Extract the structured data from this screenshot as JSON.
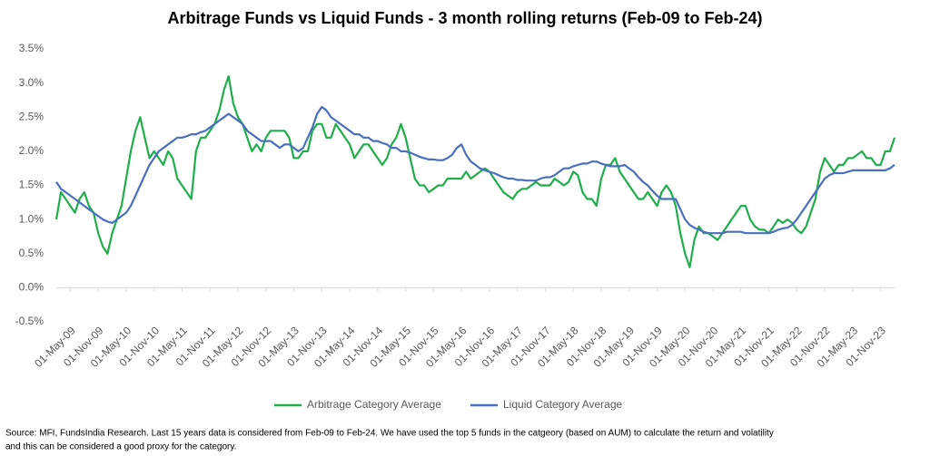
{
  "chart_data": {
    "type": "line",
    "title": "Arbitrage Funds vs Liquid Funds - 3 month rolling returns (Feb-09 to Feb-24)",
    "x": [
      "01-Feb-09",
      "01-Mar-09",
      "01-Apr-09",
      "01-May-09",
      "01-Jun-09",
      "01-Jul-09",
      "01-Aug-09",
      "01-Sep-09",
      "01-Oct-09",
      "01-Nov-09",
      "01-Dec-09",
      "01-Jan-10",
      "01-Feb-10",
      "01-Mar-10",
      "01-Apr-10",
      "01-May-10",
      "01-Jun-10",
      "01-Jul-10",
      "01-Aug-10",
      "01-Sep-10",
      "01-Oct-10",
      "01-Nov-10",
      "01-Dec-10",
      "01-Jan-11",
      "01-Feb-11",
      "01-Mar-11",
      "01-Apr-11",
      "01-May-11",
      "01-Jun-11",
      "01-Jul-11",
      "01-Aug-11",
      "01-Sep-11",
      "01-Oct-11",
      "01-Nov-11",
      "01-Dec-11",
      "01-Jan-12",
      "01-Feb-12",
      "01-Mar-12",
      "01-Apr-12",
      "01-May-12",
      "01-Jun-12",
      "01-Jul-12",
      "01-Aug-12",
      "01-Sep-12",
      "01-Oct-12",
      "01-Nov-12",
      "01-Dec-12",
      "01-Jan-13",
      "01-Feb-13",
      "01-Mar-13",
      "01-Apr-13",
      "01-May-13",
      "01-Jun-13",
      "01-Jul-13",
      "01-Aug-13",
      "01-Sep-13",
      "01-Oct-13",
      "01-Nov-13",
      "01-Dec-13",
      "01-Jan-14",
      "01-Feb-14",
      "01-Mar-14",
      "01-Apr-14",
      "01-May-14",
      "01-Jun-14",
      "01-Jul-14",
      "01-Aug-14",
      "01-Sep-14",
      "01-Oct-14",
      "01-Nov-14",
      "01-Dec-14",
      "01-Jan-15",
      "01-Feb-15",
      "01-Mar-15",
      "01-Apr-15",
      "01-May-15",
      "01-Jun-15",
      "01-Jul-15",
      "01-Aug-15",
      "01-Sep-15",
      "01-Oct-15",
      "01-Nov-15",
      "01-Dec-15",
      "01-Jan-16",
      "01-Feb-16",
      "01-Mar-16",
      "01-Apr-16",
      "01-May-16",
      "01-Jun-16",
      "01-Jul-16",
      "01-Aug-16",
      "01-Sep-16",
      "01-Oct-16",
      "01-Nov-16",
      "01-Dec-16",
      "01-Jan-17",
      "01-Feb-17",
      "01-Mar-17",
      "01-Apr-17",
      "01-May-17",
      "01-Jun-17",
      "01-Jul-17",
      "01-Aug-17",
      "01-Sep-17",
      "01-Oct-17",
      "01-Nov-17",
      "01-Dec-17",
      "01-Jan-18",
      "01-Feb-18",
      "01-Mar-18",
      "01-Apr-18",
      "01-May-18",
      "01-Jun-18",
      "01-Jul-18",
      "01-Aug-18",
      "01-Sep-18",
      "01-Oct-18",
      "01-Nov-18",
      "01-Dec-18",
      "01-Jan-19",
      "01-Feb-19",
      "01-Mar-19",
      "01-Apr-19",
      "01-May-19",
      "01-Jun-19",
      "01-Jul-19",
      "01-Aug-19",
      "01-Sep-19",
      "01-Oct-19",
      "01-Nov-19",
      "01-Dec-19",
      "01-Jan-20",
      "01-Feb-20",
      "01-Mar-20",
      "01-Apr-20",
      "01-May-20",
      "01-Jun-20",
      "01-Jul-20",
      "01-Aug-20",
      "01-Sep-20",
      "01-Oct-20",
      "01-Nov-20",
      "01-Dec-20",
      "01-Jan-21",
      "01-Feb-21",
      "01-Mar-21",
      "01-Apr-21",
      "01-May-21",
      "01-Jun-21",
      "01-Jul-21",
      "01-Aug-21",
      "01-Sep-21",
      "01-Oct-21",
      "01-Nov-21",
      "01-Dec-21",
      "01-Jan-22",
      "01-Feb-22",
      "01-Mar-22",
      "01-Apr-22",
      "01-May-22",
      "01-Jun-22",
      "01-Jul-22",
      "01-Aug-22",
      "01-Sep-22",
      "01-Oct-22",
      "01-Nov-22",
      "01-Dec-22",
      "01-Jan-23",
      "01-Feb-23",
      "01-Mar-23",
      "01-Apr-23",
      "01-May-23",
      "01-Jun-23",
      "01-Jul-23",
      "01-Aug-23",
      "01-Sep-23",
      "01-Oct-23",
      "01-Nov-23",
      "01-Dec-23",
      "01-Jan-24",
      "01-Feb-24"
    ],
    "series": [
      {
        "name": "Arbitrage Category Average",
        "color": "#1fae4b",
        "values": [
          1.0,
          1.4,
          1.3,
          1.2,
          1.1,
          1.3,
          1.4,
          1.2,
          1.1,
          0.8,
          0.6,
          0.5,
          0.8,
          1.0,
          1.2,
          1.6,
          2.0,
          2.3,
          2.5,
          2.2,
          1.9,
          2.0,
          1.9,
          1.8,
          2.0,
          1.9,
          1.6,
          1.5,
          1.4,
          1.3,
          2.0,
          2.2,
          2.2,
          2.3,
          2.4,
          2.6,
          2.9,
          3.1,
          2.7,
          2.5,
          2.4,
          2.2,
          2.0,
          2.1,
          2.0,
          2.2,
          2.3,
          2.3,
          2.3,
          2.3,
          2.2,
          1.9,
          1.9,
          2.0,
          2.0,
          2.3,
          2.4,
          2.4,
          2.2,
          2.2,
          2.4,
          2.3,
          2.2,
          2.1,
          1.9,
          2.0,
          2.1,
          2.1,
          2.0,
          1.9,
          1.8,
          1.9,
          2.1,
          2.2,
          2.4,
          2.2,
          1.9,
          1.6,
          1.5,
          1.5,
          1.4,
          1.45,
          1.5,
          1.5,
          1.6,
          1.6,
          1.6,
          1.6,
          1.7,
          1.6,
          1.65,
          1.7,
          1.75,
          1.7,
          1.6,
          1.5,
          1.4,
          1.35,
          1.3,
          1.4,
          1.45,
          1.45,
          1.5,
          1.55,
          1.5,
          1.5,
          1.5,
          1.6,
          1.55,
          1.5,
          1.55,
          1.7,
          1.65,
          1.4,
          1.3,
          1.3,
          1.2,
          1.6,
          1.8,
          1.8,
          1.9,
          1.7,
          1.6,
          1.5,
          1.4,
          1.3,
          1.3,
          1.4,
          1.3,
          1.2,
          1.4,
          1.5,
          1.4,
          1.2,
          0.8,
          0.5,
          0.3,
          0.7,
          0.9,
          0.8,
          0.8,
          0.75,
          0.7,
          0.8,
          0.9,
          1.0,
          1.1,
          1.2,
          1.2,
          1.0,
          0.9,
          0.85,
          0.85,
          0.8,
          0.9,
          1.0,
          0.95,
          1.0,
          0.95,
          0.85,
          0.8,
          0.9,
          1.1,
          1.3,
          1.7,
          1.9,
          1.8,
          1.7,
          1.8,
          1.8,
          1.9,
          1.9,
          1.95,
          2.0,
          1.9,
          1.9,
          1.8,
          1.8,
          2.0,
          2.0,
          2.2
        ]
      },
      {
        "name": "Liquid Category Average",
        "color": "#4a6fbf",
        "values": [
          1.55,
          1.45,
          1.4,
          1.35,
          1.3,
          1.25,
          1.2,
          1.15,
          1.1,
          1.05,
          1.0,
          0.97,
          0.95,
          1.0,
          1.05,
          1.1,
          1.2,
          1.35,
          1.5,
          1.65,
          1.8,
          1.9,
          2.0,
          2.05,
          2.1,
          2.15,
          2.2,
          2.2,
          2.22,
          2.25,
          2.25,
          2.28,
          2.3,
          2.35,
          2.4,
          2.45,
          2.5,
          2.55,
          2.5,
          2.45,
          2.4,
          2.3,
          2.25,
          2.2,
          2.15,
          2.15,
          2.15,
          2.1,
          2.05,
          2.1,
          2.1,
          2.05,
          2.0,
          2.05,
          2.2,
          2.35,
          2.55,
          2.65,
          2.6,
          2.5,
          2.45,
          2.4,
          2.35,
          2.3,
          2.25,
          2.25,
          2.2,
          2.2,
          2.15,
          2.15,
          2.12,
          2.1,
          2.05,
          2.05,
          2.0,
          2.0,
          1.98,
          1.95,
          1.92,
          1.9,
          1.88,
          1.88,
          1.87,
          1.87,
          1.9,
          1.95,
          2.05,
          2.1,
          1.95,
          1.85,
          1.8,
          1.75,
          1.72,
          1.7,
          1.68,
          1.65,
          1.62,
          1.6,
          1.6,
          1.58,
          1.58,
          1.57,
          1.57,
          1.57,
          1.6,
          1.62,
          1.62,
          1.65,
          1.7,
          1.75,
          1.75,
          1.78,
          1.8,
          1.82,
          1.82,
          1.85,
          1.85,
          1.82,
          1.8,
          1.78,
          1.78,
          1.78,
          1.8,
          1.75,
          1.7,
          1.62,
          1.55,
          1.5,
          1.42,
          1.35,
          1.3,
          1.3,
          1.3,
          1.3,
          1.15,
          1.0,
          0.92,
          0.88,
          0.85,
          0.82,
          0.8,
          0.8,
          0.8,
          0.8,
          0.82,
          0.82,
          0.82,
          0.82,
          0.8,
          0.8,
          0.8,
          0.8,
          0.8,
          0.8,
          0.82,
          0.85,
          0.87,
          0.88,
          0.92,
          1.0,
          1.1,
          1.2,
          1.3,
          1.4,
          1.5,
          1.6,
          1.65,
          1.68,
          1.68,
          1.68,
          1.7,
          1.72,
          1.72,
          1.72,
          1.72,
          1.72,
          1.72,
          1.72,
          1.72,
          1.75,
          1.8
        ]
      }
    ],
    "xticks": [
      "01-May-09",
      "01-Nov-09",
      "01-May-10",
      "01-Nov-10",
      "01-May-11",
      "01-Nov-11",
      "01-May-12",
      "01-Nov-12",
      "01-May-13",
      "01-Nov-13",
      "01-May-14",
      "01-Nov-14",
      "01-May-15",
      "01-Nov-15",
      "01-May-16",
      "01-Nov-16",
      "01-May-17",
      "01-Nov-17",
      "01-May-18",
      "01-Nov-18",
      "01-May-19",
      "01-Nov-19",
      "01-May-20",
      "01-Nov-20",
      "01-May-21",
      "01-Nov-21",
      "01-May-22",
      "01-Nov-22",
      "01-May-23",
      "01-Nov-23"
    ],
    "ylim": [
      -0.5,
      3.5
    ],
    "yticks": [
      {
        "value": -0.5,
        "label": "-0.5%"
      },
      {
        "value": 0,
        "label": "0.0%"
      },
      {
        "value": 0.5,
        "label": "0.5%"
      },
      {
        "value": 1,
        "label": "1.0%"
      },
      {
        "value": 1.5,
        "label": "1.5%"
      },
      {
        "value": 2,
        "label": "2.0%"
      },
      {
        "value": 2.5,
        "label": "2.5%"
      },
      {
        "value": 3,
        "label": "3.0%"
      },
      {
        "value": 3.5,
        "label": "3.5%"
      }
    ],
    "grid": false,
    "legend": "bottom",
    "notes": [
      "Source: MFI, FundsIndia Research. Last 15 years data is considered from Feb-09 to Feb-24. We have used the top 5 funds in the catgeory (based on AUM) to calculate the return and volatility",
      "and this can be considered a good proxy for the category."
    ]
  }
}
